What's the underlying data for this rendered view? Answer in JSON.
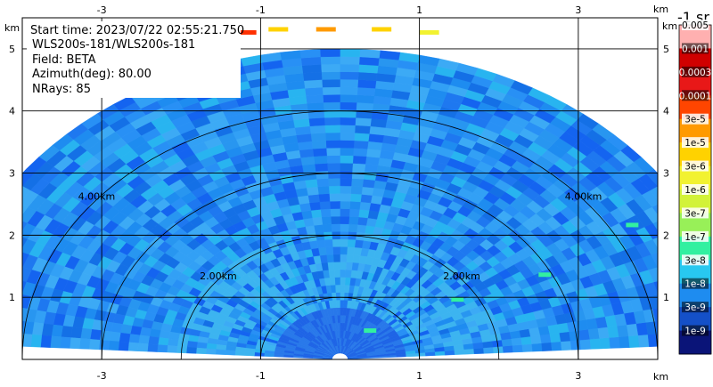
{
  "info": {
    "start_time": "Start time: 2023/07/22 02:55:21.750",
    "instrument": "WLS200s-181/WLS200s-181",
    "field": "Field: BETA",
    "azimuth": "Azimuth(deg): 80.00",
    "nrays": "NRays: 85"
  },
  "chart_data": {
    "type": "heatmap",
    "subtype": "RHI range-height",
    "xlim": [
      -4.0,
      4.0
    ],
    "ylim": [
      0.0,
      5.5
    ],
    "x_ticks": [
      "-3",
      "-1",
      "1",
      "3"
    ],
    "y_ticks": [
      "1",
      "2",
      "3",
      "4",
      "5"
    ],
    "x_unit": "km",
    "y_unit": "km",
    "range_rings": [
      {
        "label": "2.00km"
      },
      {
        "label": "4.00km"
      }
    ],
    "max_range_km": 5.0,
    "colorbar": {
      "units": "-1 sr",
      "labels": [
        "0.005",
        "0.001",
        "0.0003",
        "0.0001",
        "3e-5",
        "1e-5",
        "3e-6",
        "1e-6",
        "3e-7",
        "1e-7",
        "3e-8",
        "1e-8",
        "3e-9",
        "1e-9"
      ],
      "colors": [
        "#ffb0b0",
        "#d00000",
        "#e81818",
        "#ff4500",
        "#ff9a00",
        "#ffd200",
        "#f2f230",
        "#d2f238",
        "#98f058",
        "#32f0a0",
        "#28c8f0",
        "#1e8cf0",
        "#1450c8",
        "#0a1478"
      ]
    },
    "grid": true
  }
}
